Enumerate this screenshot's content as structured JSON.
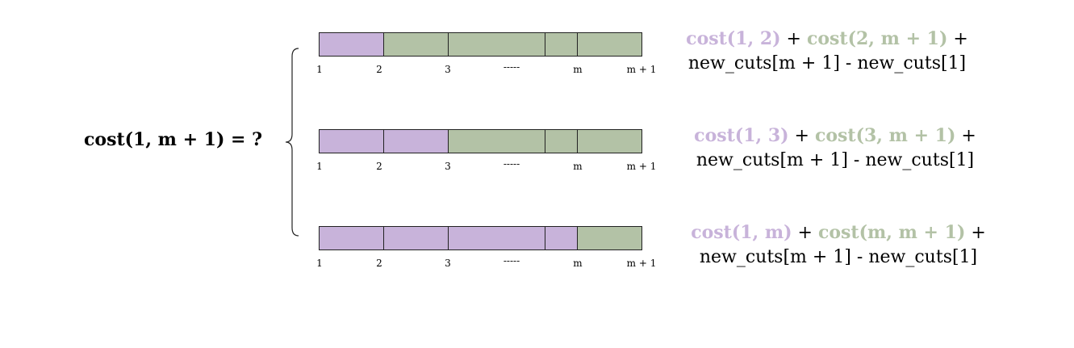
{
  "colors": {
    "left": "#c8b3da",
    "right": "#b3c2a6",
    "border": "#222222"
  },
  "question": "cost(1, m + 1) = ?",
  "tick_labels": [
    "1",
    "2",
    "3",
    "-----",
    "m",
    "m + 1"
  ],
  "rows": [
    {
      "split_index": 1,
      "formula": {
        "left_cost": "cost(1, 2)",
        "plus1": " + ",
        "right_cost": "cost(2, m + 1)",
        "plus2": " +",
        "line2": "new_cuts[m + 1] - new_cuts[1]"
      }
    },
    {
      "split_index": 2,
      "formula": {
        "left_cost": "cost(1, 3)",
        "plus1": " + ",
        "right_cost": "cost(3, m + 1)",
        "plus2": " +",
        "line2": "new_cuts[m + 1] - new_cuts[1]"
      }
    },
    {
      "split_index": 4,
      "formula": {
        "left_cost": "cost(1, m)",
        "plus1": " + ",
        "right_cost": "cost(m, m + 1)",
        "plus2": " +",
        "line2": "new_cuts[m + 1] - new_cuts[1]"
      }
    }
  ]
}
